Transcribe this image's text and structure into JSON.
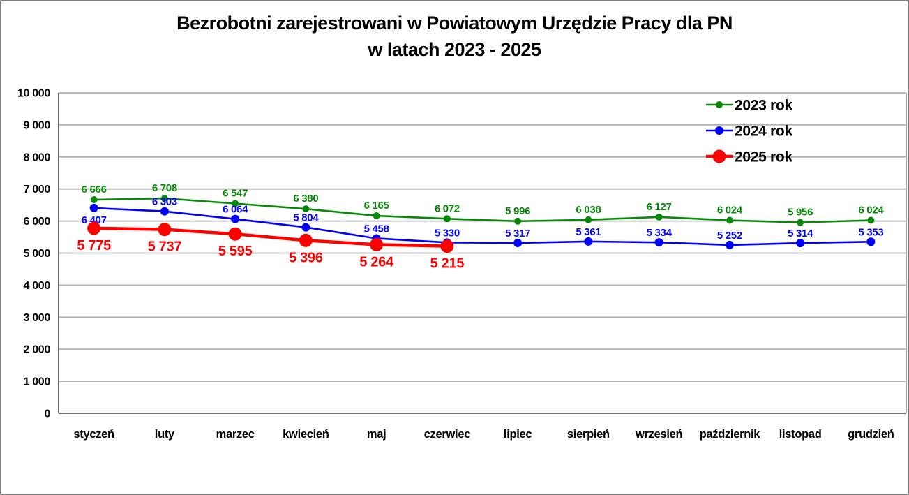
{
  "title": {
    "line1": "Bezrobotni zarejestrowani w Powiatowym Urzędzie Pracy dla PN",
    "line2": "w latach 2023 - 2025"
  },
  "chart_data": {
    "type": "line",
    "title": "Bezrobotni zarejestrowani w Powiatowym Urzędzie Pracy dla PN w latach 2023 - 2025",
    "categories": [
      "styczeń",
      "luty",
      "marzec",
      "kwiecień",
      "maj",
      "czerwiec",
      "lipiec",
      "sierpień",
      "wrzesień",
      "październik",
      "listopad",
      "grudzień"
    ],
    "series": [
      {
        "name": "2023 rok",
        "color": "#098909",
        "values": [
          6666,
          6708,
          6547,
          6380,
          6165,
          6072,
          5996,
          6038,
          6127,
          6024,
          5956,
          6024
        ],
        "marker_radius": 5,
        "line_width": 2.6,
        "label_font": 15,
        "labels_dy": -10,
        "labels_dy_overrides": {}
      },
      {
        "name": "2024 rok",
        "color": "#0000ff",
        "values": [
          6407,
          6303,
          6064,
          5804,
          5458,
          5330,
          5317,
          5361,
          5334,
          5252,
          5314,
          5353
        ],
        "marker_radius": 6,
        "line_width": 2.6,
        "label_font": 15,
        "labels_dy": -9,
        "labels_dy_overrides": {
          "0": 22
        }
      },
      {
        "name": "2025 rok",
        "color": "#ff0000",
        "values": [
          5775,
          5737,
          5595,
          5396,
          5264,
          5215
        ],
        "marker_radius": 9.5,
        "line_width": 4.5,
        "label_font": 20,
        "labels_dy": 31,
        "labels_dy_overrides": {}
      }
    ],
    "xlabel": "",
    "ylabel": "",
    "ylim": [
      0,
      10000
    ],
    "ytick_step": 1000,
    "grid": true,
    "legend_position": "top-right",
    "colors": {
      "gridline": "#b3b3b3",
      "axis": "#404040",
      "plot_border": "#808080",
      "tick_label": "#000000"
    }
  }
}
